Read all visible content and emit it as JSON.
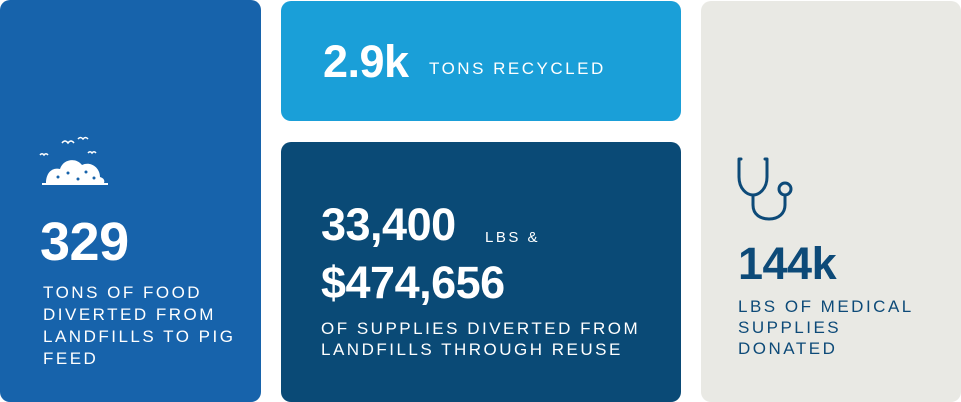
{
  "food": {
    "value": "329",
    "label": "TONS OF FOOD DIVERTED FROM LANDFILLS TO PIG FEED",
    "icon": "compost-pile-icon"
  },
  "recycled": {
    "value": "2.9k",
    "label": "TONS RECYCLED"
  },
  "supplies": {
    "lbs_value": "33,400",
    "lbs_unit": "LBS &",
    "dollar_value": "$474,656",
    "label": "OF SUPPLIES DIVERTED FROM LANDFILLS THROUGH REUSE"
  },
  "medical": {
    "value": "144k",
    "label": "LBS OF MEDICAL SUPPLIES DONATED",
    "icon": "stethoscope-icon"
  },
  "colors": {
    "food_card": "#1763ab",
    "recycled_card": "#1a9fd8",
    "supplies_card": "#0a4a76",
    "medical_card": "#e9e9e4",
    "medical_text": "#0d4a78"
  }
}
